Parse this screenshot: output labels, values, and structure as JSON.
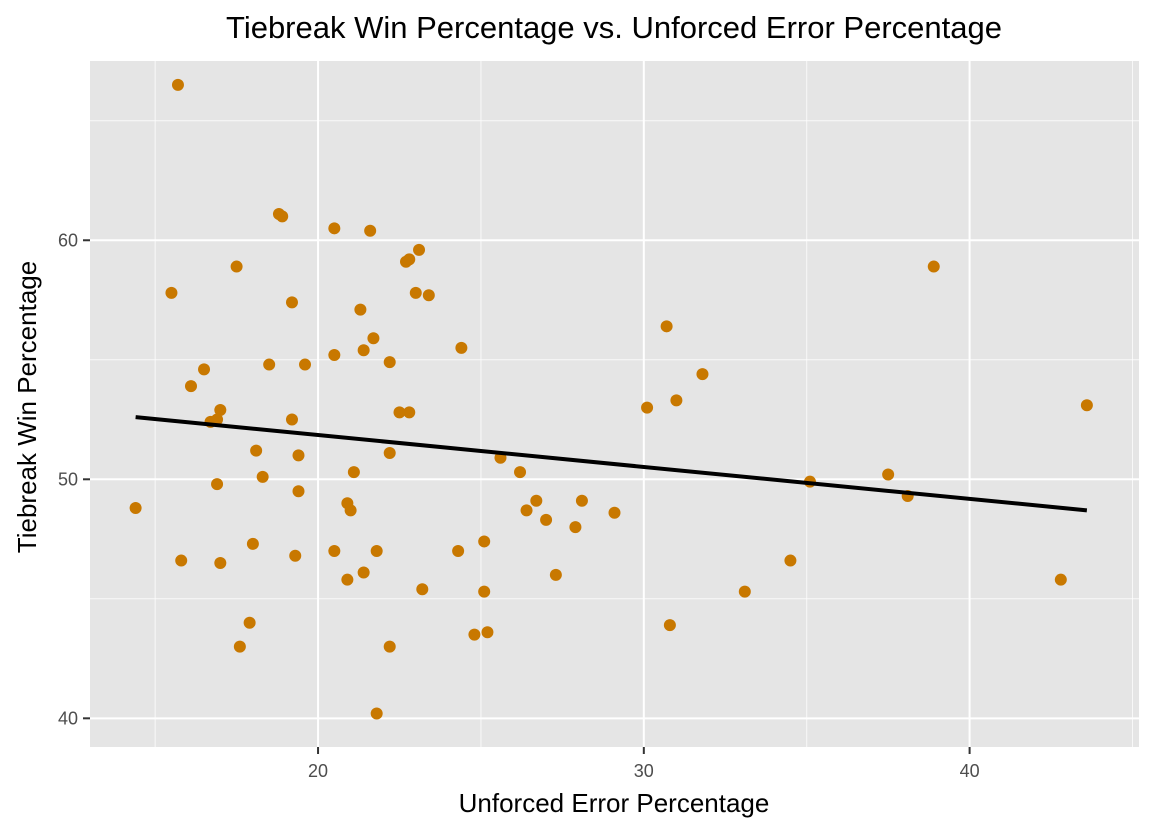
{
  "chart_data": {
    "type": "scatter",
    "title": "Tiebreak Win Percentage vs. Unforced Error Percentage",
    "xlabel": "Unforced Error Percentage",
    "ylabel": "Tiebreak Win Percentage",
    "xlim": [
      13.0,
      45.2
    ],
    "ylim": [
      38.8,
      67.5
    ],
    "x_ticks": [
      20,
      30,
      40
    ],
    "y_ticks": [
      40,
      50,
      60
    ],
    "x_tick_labels": [
      "20",
      "30",
      "40"
    ],
    "y_tick_labels": [
      "40",
      "50",
      "60"
    ],
    "grid": true,
    "panel_color": "#e5e5e5",
    "point_color": "#c87800",
    "line_color": "#000000",
    "trend_line": {
      "x": [
        14.4,
        43.6
      ],
      "y": [
        52.6,
        48.7
      ]
    },
    "points": [
      {
        "x": 14.4,
        "y": 48.8
      },
      {
        "x": 15.5,
        "y": 57.8
      },
      {
        "x": 15.7,
        "y": 66.5
      },
      {
        "x": 15.8,
        "y": 46.6
      },
      {
        "x": 16.1,
        "y": 53.9
      },
      {
        "x": 16.5,
        "y": 54.6
      },
      {
        "x": 16.7,
        "y": 52.4
      },
      {
        "x": 16.9,
        "y": 52.5
      },
      {
        "x": 17.0,
        "y": 52.9
      },
      {
        "x": 16.9,
        "y": 49.8
      },
      {
        "x": 17.0,
        "y": 46.5
      },
      {
        "x": 17.5,
        "y": 58.9
      },
      {
        "x": 17.6,
        "y": 43.0
      },
      {
        "x": 17.9,
        "y": 44.0
      },
      {
        "x": 18.0,
        "y": 47.3
      },
      {
        "x": 18.1,
        "y": 51.2
      },
      {
        "x": 18.3,
        "y": 50.1
      },
      {
        "x": 18.5,
        "y": 54.8
      },
      {
        "x": 18.8,
        "y": 61.1
      },
      {
        "x": 18.9,
        "y": 61.0
      },
      {
        "x": 19.2,
        "y": 57.4
      },
      {
        "x": 19.2,
        "y": 52.5
      },
      {
        "x": 19.3,
        "y": 46.8
      },
      {
        "x": 19.4,
        "y": 51.0
      },
      {
        "x": 19.4,
        "y": 49.5
      },
      {
        "x": 19.6,
        "y": 54.8
      },
      {
        "x": 20.5,
        "y": 60.5
      },
      {
        "x": 20.5,
        "y": 55.2
      },
      {
        "x": 20.5,
        "y": 47.0
      },
      {
        "x": 20.9,
        "y": 49.0
      },
      {
        "x": 20.9,
        "y": 45.8
      },
      {
        "x": 21.0,
        "y": 48.7
      },
      {
        "x": 21.1,
        "y": 50.3
      },
      {
        "x": 21.3,
        "y": 57.1
      },
      {
        "x": 21.4,
        "y": 55.4
      },
      {
        "x": 21.4,
        "y": 46.1
      },
      {
        "x": 21.6,
        "y": 60.4
      },
      {
        "x": 21.7,
        "y": 55.9
      },
      {
        "x": 21.8,
        "y": 47.0
      },
      {
        "x": 21.8,
        "y": 40.2
      },
      {
        "x": 22.2,
        "y": 54.9
      },
      {
        "x": 22.2,
        "y": 51.1
      },
      {
        "x": 22.2,
        "y": 43.0
      },
      {
        "x": 22.5,
        "y": 52.8
      },
      {
        "x": 22.7,
        "y": 59.1
      },
      {
        "x": 22.8,
        "y": 59.2
      },
      {
        "x": 22.8,
        "y": 52.8
      },
      {
        "x": 23.0,
        "y": 57.8
      },
      {
        "x": 23.1,
        "y": 59.6
      },
      {
        "x": 23.2,
        "y": 45.4
      },
      {
        "x": 23.4,
        "y": 57.7
      },
      {
        "x": 24.3,
        "y": 47.0
      },
      {
        "x": 24.4,
        "y": 55.5
      },
      {
        "x": 24.8,
        "y": 43.5
      },
      {
        "x": 25.1,
        "y": 47.4
      },
      {
        "x": 25.1,
        "y": 45.3
      },
      {
        "x": 25.2,
        "y": 43.6
      },
      {
        "x": 25.6,
        "y": 50.9
      },
      {
        "x": 26.2,
        "y": 50.3
      },
      {
        "x": 26.4,
        "y": 48.7
      },
      {
        "x": 26.7,
        "y": 49.1
      },
      {
        "x": 27.0,
        "y": 48.3
      },
      {
        "x": 27.3,
        "y": 46.0
      },
      {
        "x": 27.9,
        "y": 48.0
      },
      {
        "x": 28.1,
        "y": 49.1
      },
      {
        "x": 29.1,
        "y": 48.6
      },
      {
        "x": 30.1,
        "y": 53.0
      },
      {
        "x": 30.7,
        "y": 56.4
      },
      {
        "x": 30.8,
        "y": 43.9
      },
      {
        "x": 31.0,
        "y": 53.3
      },
      {
        "x": 31.8,
        "y": 54.4
      },
      {
        "x": 33.1,
        "y": 45.3
      },
      {
        "x": 34.5,
        "y": 46.6
      },
      {
        "x": 35.1,
        "y": 49.9
      },
      {
        "x": 37.5,
        "y": 50.2
      },
      {
        "x": 38.1,
        "y": 49.3
      },
      {
        "x": 38.9,
        "y": 58.9
      },
      {
        "x": 42.8,
        "y": 45.8
      },
      {
        "x": 43.6,
        "y": 53.1
      }
    ]
  }
}
